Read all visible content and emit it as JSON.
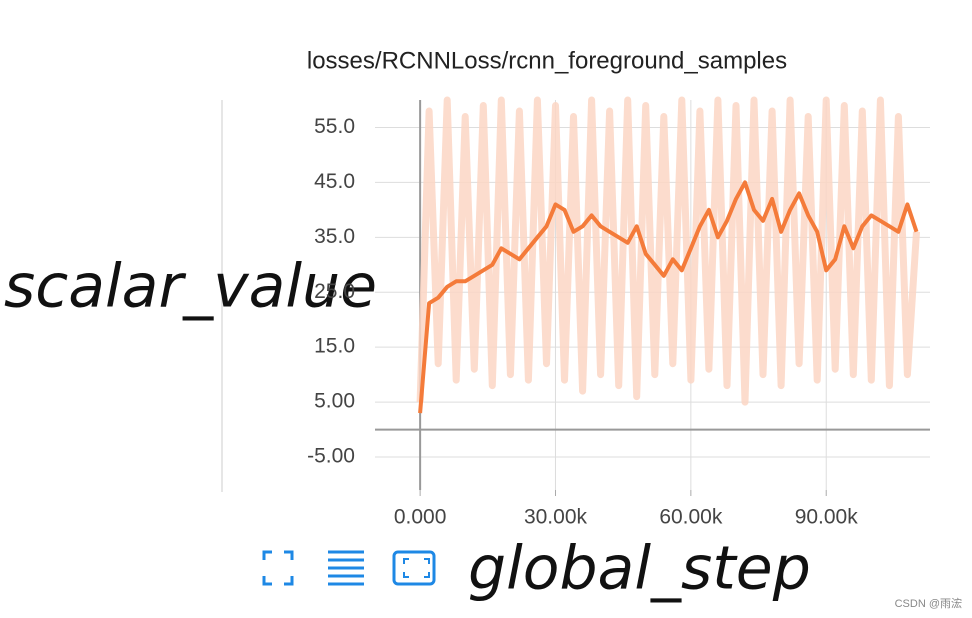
{
  "chart_data": {
    "type": "line",
    "title": "losses/RCNNLoss/rcnn_foreground_samples",
    "annotations": [
      "scalar_value",
      "global_step"
    ],
    "watermark": "CSDN @雨浤",
    "x": [
      0,
      2000,
      4000,
      6000,
      8000,
      10000,
      12000,
      14000,
      16000,
      18000,
      20000,
      22000,
      24000,
      26000,
      28000,
      30000,
      32000,
      34000,
      36000,
      38000,
      40000,
      42000,
      44000,
      46000,
      48000,
      50000,
      52000,
      54000,
      56000,
      58000,
      60000,
      62000,
      64000,
      66000,
      68000,
      70000,
      72000,
      74000,
      76000,
      78000,
      80000,
      82000,
      84000,
      86000,
      88000,
      90000,
      92000,
      94000,
      96000,
      98000,
      100000,
      102000,
      104000,
      106000,
      108000,
      110000
    ],
    "series": [
      {
        "color": "#fcd6c4",
        "values": [
          5,
          58,
          12,
          60,
          9,
          57,
          11,
          59,
          8,
          60,
          10,
          58,
          9,
          60,
          12,
          59,
          9,
          57,
          7,
          60,
          10,
          58,
          8,
          60,
          6,
          59,
          10,
          57,
          12,
          60,
          9,
          58,
          11,
          60,
          8,
          59,
          5,
          60,
          10,
          58,
          8,
          60,
          12,
          57,
          9,
          60,
          11,
          59,
          10,
          58,
          9,
          60,
          8,
          57,
          10,
          36
        ]
      },
      {
        "color": "#f47b3a",
        "values": [
          3,
          23,
          24,
          26,
          27,
          27,
          28,
          29,
          30,
          33,
          32,
          31,
          33,
          35,
          37,
          41,
          40,
          36,
          37,
          39,
          37,
          36,
          35,
          34,
          37,
          32,
          30,
          28,
          31,
          29,
          33,
          37,
          40,
          35,
          38,
          42,
          45,
          40,
          38,
          42,
          36,
          40,
          43,
          39,
          36,
          29,
          31,
          37,
          33,
          37,
          39,
          38,
          37,
          36,
          41,
          36
        ]
      }
    ],
    "xlim": [
      -10000,
      113000
    ],
    "ylim": [
      -11,
      60
    ],
    "xticks": [
      {
        "value": 0,
        "label": "0.000"
      },
      {
        "value": 30000,
        "label": "30.00k"
      },
      {
        "value": 60000,
        "label": "60.00k"
      },
      {
        "value": 90000,
        "label": "90.00k"
      }
    ],
    "yticks": [
      {
        "value": -5,
        "label": "-5.00"
      },
      {
        "value": 5,
        "label": "5.00"
      },
      {
        "value": 15,
        "label": "15.0"
      },
      {
        "value": 25,
        "label": "25.0"
      },
      {
        "value": 35,
        "label": "35.0"
      },
      {
        "value": 45,
        "label": "45.0"
      },
      {
        "value": 55,
        "label": "55.0"
      }
    ],
    "grid": true
  }
}
